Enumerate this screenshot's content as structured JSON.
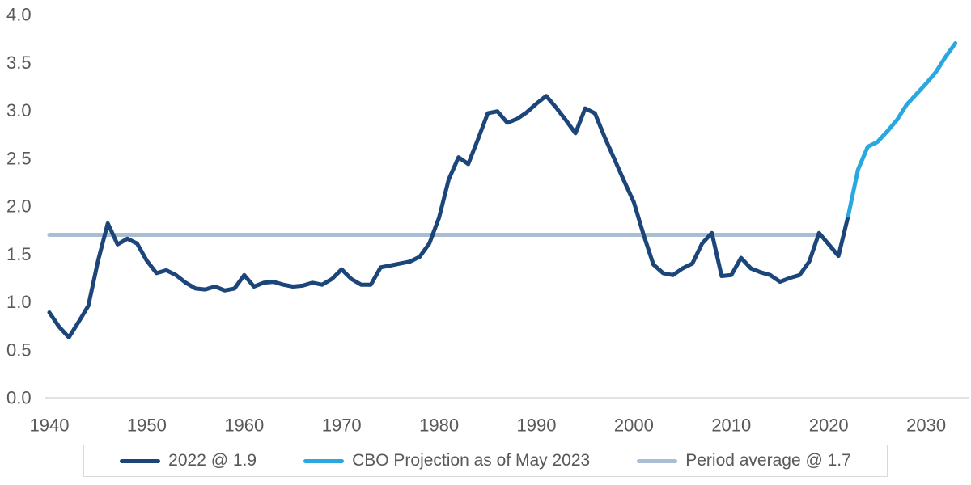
{
  "chart_data": {
    "type": "line",
    "title": "",
    "grid": "off",
    "legend_position": "bottom",
    "y_axis": {
      "min": 0,
      "max": 4,
      "tick_labels": [
        "0.0",
        "0.5",
        "1.0",
        "1.5",
        "2.0",
        "2.5",
        "3.0",
        "3.5",
        "4.0"
      ]
    },
    "x_axis": {
      "tick_labels": [
        "1940",
        "1950",
        "1960",
        "1970",
        "1980",
        "1990",
        "2000",
        "2010",
        "2020",
        "2030"
      ],
      "start_year": 1940,
      "end_year": 2033
    },
    "series": [
      {
        "name": "2022 @ 1.9",
        "color": "#1c4679",
        "start_year": 1940,
        "values": [
          0.89,
          0.74,
          0.63,
          0.79,
          0.96,
          1.43,
          1.82,
          1.6,
          1.66,
          1.61,
          1.43,
          1.3,
          1.33,
          1.28,
          1.2,
          1.14,
          1.13,
          1.16,
          1.12,
          1.14,
          1.28,
          1.16,
          1.2,
          1.21,
          1.18,
          1.16,
          1.17,
          1.2,
          1.18,
          1.24,
          1.34,
          1.24,
          1.18,
          1.18,
          1.36,
          1.38,
          1.4,
          1.42,
          1.47,
          1.61,
          1.88,
          2.28,
          2.51,
          2.44,
          2.7,
          2.97,
          2.99,
          2.87,
          2.91,
          2.98,
          3.07,
          3.15,
          3.03,
          2.9,
          2.76,
          3.02,
          2.97,
          2.72,
          2.49,
          2.26,
          2.04,
          1.7,
          1.39,
          1.3,
          1.28,
          1.35,
          1.4,
          1.61,
          1.72,
          1.27,
          1.28,
          1.46,
          1.35,
          1.31,
          1.28,
          1.21,
          1.25,
          1.28,
          1.42,
          1.72,
          1.6,
          1.48,
          1.9
        ]
      },
      {
        "name": "CBO Projection as of May 2023",
        "color": "#29a8e0",
        "start_year": 2022,
        "values": [
          1.9,
          2.38,
          2.62,
          2.67,
          2.78,
          2.9,
          3.06,
          3.17,
          3.28,
          3.4,
          3.56,
          3.7
        ]
      },
      {
        "name": "Period average @ 1.7",
        "color": "#a9bdd3",
        "type": "horizontal_line",
        "value": 1.7,
        "from_year": 1940,
        "to_year": 2018.9
      }
    ],
    "colors": {
      "axis_text": "#595959",
      "axis_line": "#d9d9d9",
      "background": "#ffffff",
      "legend_border": "#d9d9d9",
      "legend_text": "#595959"
    }
  }
}
